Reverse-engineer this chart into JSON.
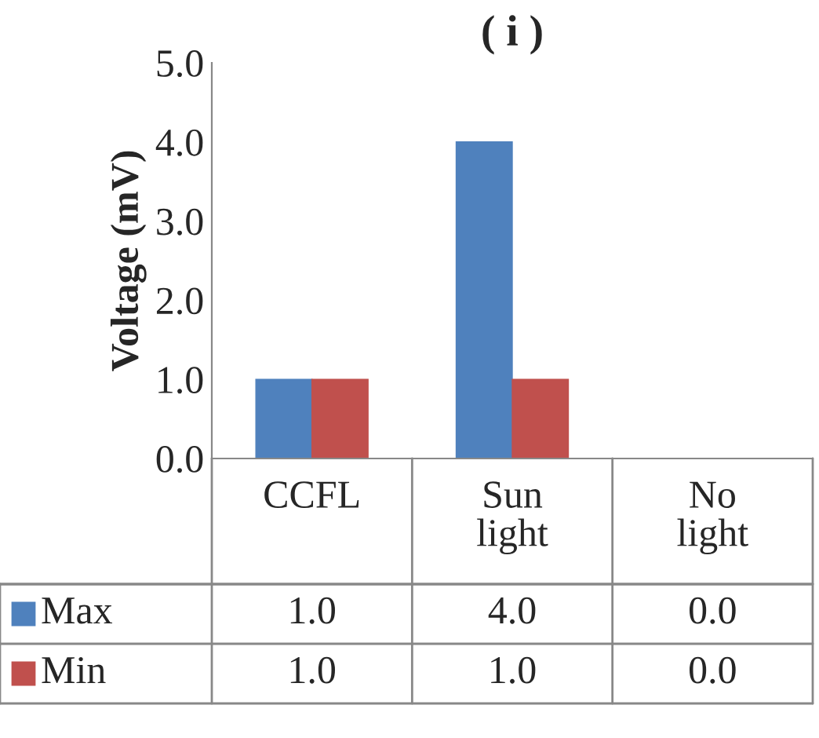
{
  "chart_data": {
    "type": "bar",
    "title": "( i )",
    "ylabel": "Voltage (mV)",
    "categories": [
      "CCFL",
      "Sun\nlight",
      "No\nlight"
    ],
    "series": [
      {
        "name": "Max",
        "color": "#4f81bd",
        "values": [
          1.0,
          4.0,
          0.0
        ],
        "value_labels": [
          "1.0",
          "4.0",
          "0.0"
        ]
      },
      {
        "name": "Min",
        "color": "#c0504d",
        "values": [
          1.0,
          1.0,
          0.0
        ],
        "value_labels": [
          "1.0",
          "1.0",
          "0.0"
        ]
      }
    ],
    "ylim": [
      0,
      5
    ],
    "yticks": [
      {
        "value": 0,
        "label": "0.0"
      },
      {
        "value": 1,
        "label": "1.0"
      },
      {
        "value": 2,
        "label": "2.0"
      },
      {
        "value": 3,
        "label": "3.0"
      },
      {
        "value": 4,
        "label": "4.0"
      },
      {
        "value": 5,
        "label": "5.0"
      }
    ],
    "grid": false,
    "legend": "bottom"
  }
}
